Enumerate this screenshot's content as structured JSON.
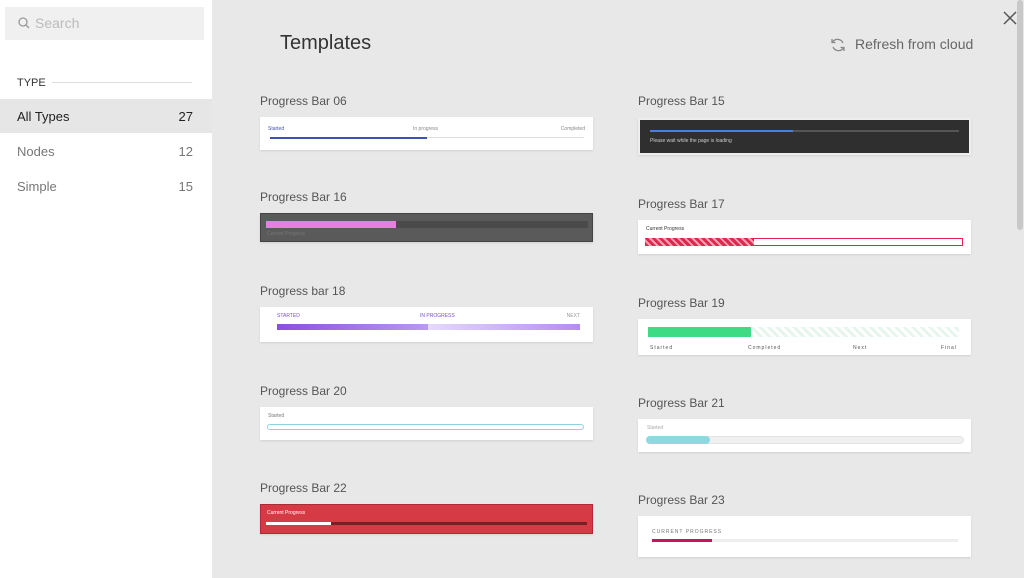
{
  "sidebar": {
    "search_placeholder": "Search",
    "section": "TYPE",
    "filters": [
      {
        "label": "All Types",
        "count": 27
      },
      {
        "label": "Nodes",
        "count": 12
      },
      {
        "label": "Simple",
        "count": 15
      }
    ]
  },
  "header": {
    "title": "Templates",
    "refresh": "Refresh from cloud"
  },
  "templates": [
    {
      "name": "Progress Bar 06",
      "labels": [
        "Started",
        "In progress",
        "Completed"
      ]
    },
    {
      "name": "Progress Bar 15",
      "labels": [
        "Please wait while the page is loading"
      ]
    },
    {
      "name": "Progress Bar 16",
      "labels": [
        "Current Progress"
      ]
    },
    {
      "name": "Progress Bar 17",
      "labels": [
        "Current Progress"
      ]
    },
    {
      "name": "Progress bar 18",
      "labels": [
        "STARTED",
        "IN PROGRESS",
        "NEXT"
      ]
    },
    {
      "name": "Progress Bar 19",
      "labels": [
        "Started",
        "Completed",
        "Next",
        "Final"
      ]
    },
    {
      "name": "Progress Bar 20",
      "labels": [
        "Started"
      ]
    },
    {
      "name": "Progress Bar 21",
      "labels": [
        "Started"
      ]
    },
    {
      "name": "Progress Bar 22",
      "labels": [
        "Current Progress"
      ]
    },
    {
      "name": "Progress Bar 23",
      "labels": [
        "CURRENT PROGRESS"
      ]
    }
  ]
}
